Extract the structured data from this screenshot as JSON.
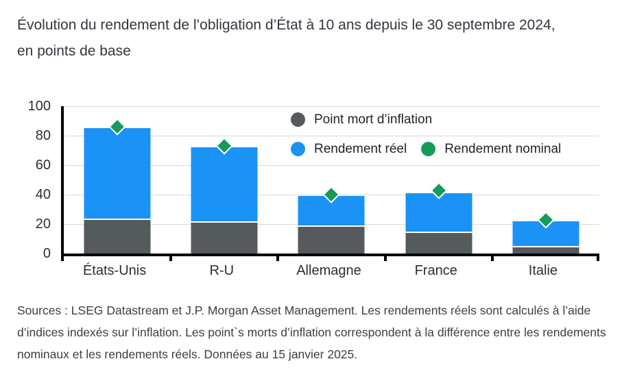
{
  "title": {
    "line1": "Évolution du rendement de l’obligation d’État à 10 ans depuis le 30 septembre 2024,",
    "line2": "en points de base"
  },
  "chart_data": {
    "type": "bar",
    "stacked": true,
    "title": "Évolution du rendement de l’obligation d’État à 10 ans depuis le 30 septembre 2024, en points de base",
    "ylabel": "points de base",
    "categories": [
      "États-Unis",
      "R-U",
      "Allemagne",
      "France",
      "Italie"
    ],
    "series": [
      {
        "name": "Point mort d’inflation",
        "type": "bar",
        "marker": "circle-swatch",
        "color": "#555A5D",
        "values": [
          23,
          21,
          18,
          14,
          4
        ]
      },
      {
        "name": "Rendement réel",
        "type": "bar",
        "marker": "circle-swatch",
        "color": "#1B92F5",
        "values": [
          62,
          51,
          21,
          27,
          18
        ]
      },
      {
        "name": "Rendement nominal",
        "type": "scatter",
        "marker": "diamond",
        "color": "#169B5A",
        "values": [
          86,
          73,
          40,
          43,
          23
        ]
      }
    ],
    "ylim": [
      0,
      100
    ],
    "yticks": [
      0,
      20,
      40,
      60,
      80,
      100
    ],
    "grid": "horizontal",
    "gridline_color": "#D8D8D8",
    "axis_color": "#000000",
    "legend_position": "top-right-inside"
  },
  "footer": "Sources : LSEG Datastream et J.P. Morgan Asset Management. Les rendements réels sont calculés à l’aide d’indices indexés sur l’inflation. Les point`s morts d’inflation correspondent à la différence entre les rendements nominaux et les rendements réels. Données au 15 janvier 2025."
}
